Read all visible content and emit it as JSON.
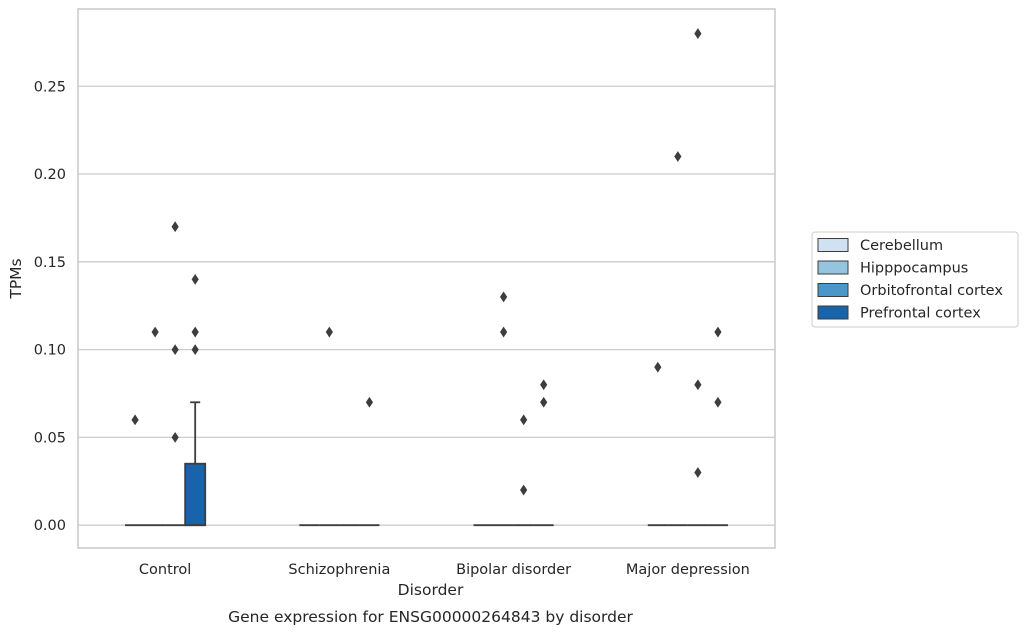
{
  "chart_data": {
    "type": "box",
    "caption": "Gene expression for ENSG00000264843 by disorder",
    "xlabel": "Disorder",
    "ylabel": "TPMs",
    "ylim": [
      -0.013,
      0.294
    ],
    "yticks": [
      0.0,
      0.05,
      0.1,
      0.15,
      0.2,
      0.25
    ],
    "ytick_labels": [
      "0.00",
      "0.05",
      "0.10",
      "0.15",
      "0.20",
      "0.25"
    ],
    "grid": "horizontal",
    "legend_position": "right",
    "categories": [
      "Control",
      "Schizophrenia",
      "Bipolar disorder",
      "Major depression"
    ],
    "series": [
      {
        "name": "Cerebellum",
        "color": "#d0e1f2",
        "boxes": [
          {
            "category": "Control",
            "q1": 0,
            "median": 0,
            "q3": 0,
            "whisker_low": 0,
            "whisker_high": 0,
            "outliers": [
              0.06
            ]
          },
          {
            "category": "Schizophrenia",
            "q1": 0,
            "median": 0,
            "q3": 0,
            "whisker_low": 0,
            "whisker_high": 0,
            "outliers": []
          },
          {
            "category": "Bipolar disorder",
            "q1": 0,
            "median": 0,
            "q3": 0,
            "whisker_low": 0,
            "whisker_high": 0,
            "outliers": []
          },
          {
            "category": "Major depression",
            "q1": 0,
            "median": 0,
            "q3": 0,
            "whisker_low": 0,
            "whisker_high": 0,
            "outliers": [
              0.09
            ]
          }
        ]
      },
      {
        "name": "Hipppocampus",
        "color": "#94c4df",
        "boxes": [
          {
            "category": "Control",
            "q1": 0,
            "median": 0,
            "q3": 0,
            "whisker_low": 0,
            "whisker_high": 0,
            "outliers": [
              0.11
            ]
          },
          {
            "category": "Schizophrenia",
            "q1": 0,
            "median": 0,
            "q3": 0,
            "whisker_low": 0,
            "whisker_high": 0,
            "outliers": [
              0.11
            ]
          },
          {
            "category": "Bipolar disorder",
            "q1": 0,
            "median": 0,
            "q3": 0,
            "whisker_low": 0,
            "whisker_high": 0,
            "outliers": [
              0.13,
              0.11
            ]
          },
          {
            "category": "Major depression",
            "q1": 0,
            "median": 0,
            "q3": 0,
            "whisker_low": 0,
            "whisker_high": 0,
            "outliers": [
              0.21
            ]
          }
        ]
      },
      {
        "name": "Orbitofrontal cortex",
        "color": "#4a98c9",
        "boxes": [
          {
            "category": "Control",
            "q1": 0,
            "median": 0,
            "q3": 0,
            "whisker_low": 0,
            "whisker_high": 0,
            "outliers": [
              0.17,
              0.1,
              0.05
            ]
          },
          {
            "category": "Schizophrenia",
            "q1": 0,
            "median": 0,
            "q3": 0,
            "whisker_low": 0,
            "whisker_high": 0,
            "outliers": []
          },
          {
            "category": "Bipolar disorder",
            "q1": 0,
            "median": 0,
            "q3": 0,
            "whisker_low": 0,
            "whisker_high": 0,
            "outliers": [
              0.06,
              0.02
            ]
          },
          {
            "category": "Major depression",
            "q1": 0,
            "median": 0,
            "q3": 0,
            "whisker_low": 0,
            "whisker_high": 0,
            "outliers": [
              0.28,
              0.08,
              0.03
            ]
          }
        ]
      },
      {
        "name": "Prefrontal cortex",
        "color": "#1764ab",
        "boxes": [
          {
            "category": "Control",
            "q1": 0,
            "median": 0,
            "q3": 0.035,
            "whisker_low": 0,
            "whisker_high": 0.07,
            "outliers": [
              0.14,
              0.11,
              0.1
            ]
          },
          {
            "category": "Schizophrenia",
            "q1": 0,
            "median": 0,
            "q3": 0,
            "whisker_low": 0,
            "whisker_high": 0,
            "outliers": [
              0.07
            ]
          },
          {
            "category": "Bipolar disorder",
            "q1": 0,
            "median": 0,
            "q3": 0,
            "whisker_low": 0,
            "whisker_high": 0,
            "outliers": [
              0.08,
              0.07
            ]
          },
          {
            "category": "Major depression",
            "q1": 0,
            "median": 0,
            "q3": 0,
            "whisker_low": 0,
            "whisker_high": 0,
            "outliers": [
              0.11,
              0.07
            ]
          }
        ]
      }
    ],
    "colors": {
      "grid": "#cccccc",
      "frame": "#cccccc",
      "box_edge": "#3d3d3d",
      "outlier": "#3d3d3d",
      "text": "#262626"
    }
  }
}
